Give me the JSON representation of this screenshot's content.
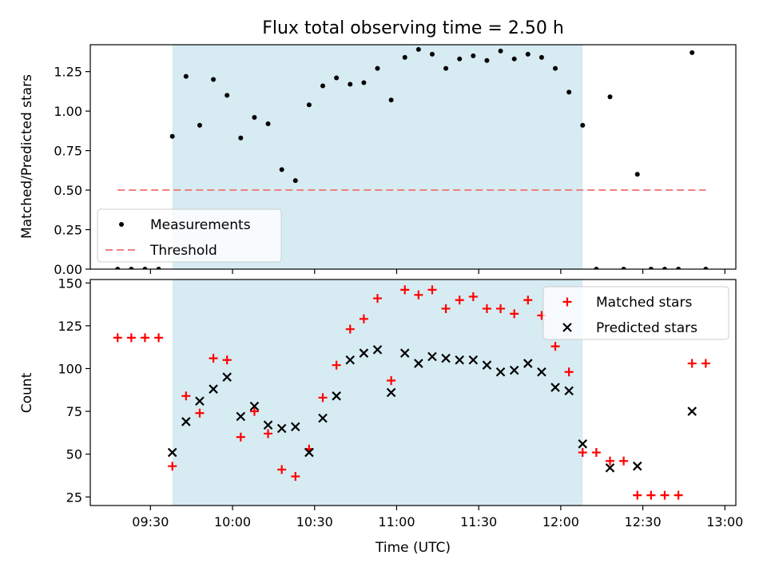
{
  "title": "Flux total observing time = 2.50 h",
  "chart_data": [
    {
      "type": "scatter",
      "panel": "top",
      "ylabel": "Matched/Predicted stars",
      "xlim": [
        "09:08",
        "13:04"
      ],
      "ylim": [
        0,
        1.42
      ],
      "yticks": [
        0.0,
        0.25,
        0.5,
        0.75,
        1.0,
        1.25
      ],
      "ytick_labels": [
        "0.00",
        "0.25",
        "0.50",
        "0.75",
        "1.00",
        "1.25"
      ],
      "shaded_span": [
        "09:38",
        "12:08"
      ],
      "legend_position": "lower-left",
      "series": [
        {
          "name": "Measurements",
          "marker": "dot",
          "color": "#000000",
          "points": [
            [
              "09:18",
              0.0
            ],
            [
              "09:23",
              0.0
            ],
            [
              "09:28",
              0.0
            ],
            [
              "09:33",
              0.0
            ],
            [
              "09:38",
              0.84
            ],
            [
              "09:43",
              1.22
            ],
            [
              "09:48",
              0.91
            ],
            [
              "09:53",
              1.2
            ],
            [
              "09:58",
              1.1
            ],
            [
              "10:03",
              0.83
            ],
            [
              "10:08",
              0.96
            ],
            [
              "10:13",
              0.92
            ],
            [
              "10:18",
              0.63
            ],
            [
              "10:23",
              0.56
            ],
            [
              "10:28",
              1.04
            ],
            [
              "10:33",
              1.16
            ],
            [
              "10:38",
              1.21
            ],
            [
              "10:43",
              1.17
            ],
            [
              "10:48",
              1.18
            ],
            [
              "10:53",
              1.27
            ],
            [
              "10:58",
              1.07
            ],
            [
              "11:03",
              1.34
            ],
            [
              "11:08",
              1.39
            ],
            [
              "11:13",
              1.36
            ],
            [
              "11:18",
              1.27
            ],
            [
              "11:23",
              1.33
            ],
            [
              "11:28",
              1.35
            ],
            [
              "11:33",
              1.32
            ],
            [
              "11:38",
              1.38
            ],
            [
              "11:43",
              1.33
            ],
            [
              "11:48",
              1.36
            ],
            [
              "11:53",
              1.34
            ],
            [
              "11:58",
              1.27
            ],
            [
              "12:03",
              1.12
            ],
            [
              "12:08",
              0.91
            ],
            [
              "12:13",
              0.0
            ],
            [
              "12:18",
              1.09
            ],
            [
              "12:23",
              0.0
            ],
            [
              "12:28",
              0.6
            ],
            [
              "12:33",
              0.0
            ],
            [
              "12:38",
              0.0
            ],
            [
              "12:43",
              0.0
            ],
            [
              "12:48",
              1.37
            ],
            [
              "12:53",
              0.0
            ]
          ]
        },
        {
          "name": "Threshold",
          "marker": "dashed-line",
          "color": "#f08080",
          "points": [
            [
              "09:18",
              0.5
            ],
            [
              "12:53",
              0.5
            ]
          ]
        }
      ]
    },
    {
      "type": "scatter",
      "panel": "bottom",
      "xlabel": "Time (UTC)",
      "ylabel": "Count",
      "xlim": [
        "09:08",
        "13:04"
      ],
      "ylim": [
        20,
        152
      ],
      "xticks": [
        "09:30",
        "10:00",
        "10:30",
        "11:00",
        "11:30",
        "12:00",
        "12:30",
        "13:00"
      ],
      "yticks": [
        25,
        50,
        75,
        100,
        125,
        150
      ],
      "shaded_span": [
        "09:38",
        "12:08"
      ],
      "legend_position": "upper-right",
      "series": [
        {
          "name": "Matched stars",
          "marker": "plus",
          "color": "#ff0000",
          "points": [
            [
              "09:18",
              118
            ],
            [
              "09:23",
              118
            ],
            [
              "09:28",
              118
            ],
            [
              "09:33",
              118
            ],
            [
              "09:38",
              43
            ],
            [
              "09:43",
              84
            ],
            [
              "09:48",
              74
            ],
            [
              "09:53",
              106
            ],
            [
              "09:58",
              105
            ],
            [
              "10:03",
              60
            ],
            [
              "10:08",
              75
            ],
            [
              "10:13",
              62
            ],
            [
              "10:18",
              41
            ],
            [
              "10:23",
              37
            ],
            [
              "10:28",
              53
            ],
            [
              "10:33",
              83
            ],
            [
              "10:38",
              102
            ],
            [
              "10:43",
              123
            ],
            [
              "10:48",
              129
            ],
            [
              "10:53",
              141
            ],
            [
              "10:58",
              93
            ],
            [
              "11:03",
              146
            ],
            [
              "11:08",
              143
            ],
            [
              "11:13",
              146
            ],
            [
              "11:18",
              135
            ],
            [
              "11:23",
              140
            ],
            [
              "11:28",
              142
            ],
            [
              "11:33",
              135
            ],
            [
              "11:38",
              135
            ],
            [
              "11:43",
              132
            ],
            [
              "11:48",
              140
            ],
            [
              "11:53",
              131
            ],
            [
              "11:58",
              113
            ],
            [
              "12:03",
              98
            ],
            [
              "12:08",
              51
            ],
            [
              "12:13",
              51
            ],
            [
              "12:18",
              46
            ],
            [
              "12:23",
              46
            ],
            [
              "12:28",
              26
            ],
            [
              "12:33",
              26
            ],
            [
              "12:38",
              26
            ],
            [
              "12:43",
              26
            ],
            [
              "12:48",
              103
            ],
            [
              "12:53",
              103
            ]
          ]
        },
        {
          "name": "Predicted stars",
          "marker": "x",
          "color": "#000000",
          "points": [
            [
              "09:38",
              51
            ],
            [
              "09:43",
              69
            ],
            [
              "09:48",
              81
            ],
            [
              "09:53",
              88
            ],
            [
              "09:58",
              95
            ],
            [
              "10:03",
              72
            ],
            [
              "10:08",
              78
            ],
            [
              "10:13",
              67
            ],
            [
              "10:18",
              65
            ],
            [
              "10:23",
              66
            ],
            [
              "10:28",
              51
            ],
            [
              "10:33",
              71
            ],
            [
              "10:38",
              84
            ],
            [
              "10:43",
              105
            ],
            [
              "10:48",
              109
            ],
            [
              "10:53",
              111
            ],
            [
              "10:58",
              86
            ],
            [
              "11:03",
              109
            ],
            [
              "11:08",
              103
            ],
            [
              "11:13",
              107
            ],
            [
              "11:18",
              106
            ],
            [
              "11:23",
              105
            ],
            [
              "11:28",
              105
            ],
            [
              "11:33",
              102
            ],
            [
              "11:38",
              98
            ],
            [
              "11:43",
              99
            ],
            [
              "11:48",
              103
            ],
            [
              "11:53",
              98
            ],
            [
              "11:58",
              89
            ],
            [
              "12:03",
              87
            ],
            [
              "12:08",
              56
            ],
            [
              "12:18",
              42
            ],
            [
              "12:28",
              43
            ],
            [
              "12:48",
              75
            ]
          ]
        }
      ]
    }
  ]
}
